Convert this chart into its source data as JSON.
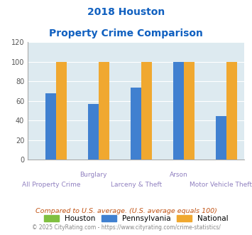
{
  "title_line1": "2018 Houston",
  "title_line2": "Property Crime Comparison",
  "categories": [
    "All Property Crime",
    "Burglary",
    "Larceny & Theft",
    "Arson",
    "Motor Vehicle Theft"
  ],
  "x_labels_row1": [
    "",
    "Burglary",
    "",
    "Arson",
    ""
  ],
  "x_labels_row2": [
    "All Property Crime",
    "",
    "Larceny & Theft",
    "",
    "Motor Vehicle Theft"
  ],
  "houston_values": [
    0,
    0,
    0,
    0,
    0
  ],
  "pennsylvania_values": [
    68,
    57,
    74,
    100,
    45
  ],
  "national_values": [
    100,
    100,
    100,
    100,
    100
  ],
  "houston_color": "#80c040",
  "pennsylvania_color": "#4080d0",
  "national_color": "#f0a830",
  "title_color": "#1060c0",
  "xlabel_color": "#9080c0",
  "background_color": "#ddeaf0",
  "legend_labels": [
    "Houston",
    "Pennsylvania",
    "National"
  ],
  "footnote1": "Compared to U.S. average. (U.S. average equals 100)",
  "footnote2": "© 2025 CityRating.com - https://www.cityrating.com/crime-statistics/",
  "ylim": [
    0,
    120
  ],
  "yticks": [
    0,
    20,
    40,
    60,
    80,
    100,
    120
  ],
  "bar_width": 0.25
}
